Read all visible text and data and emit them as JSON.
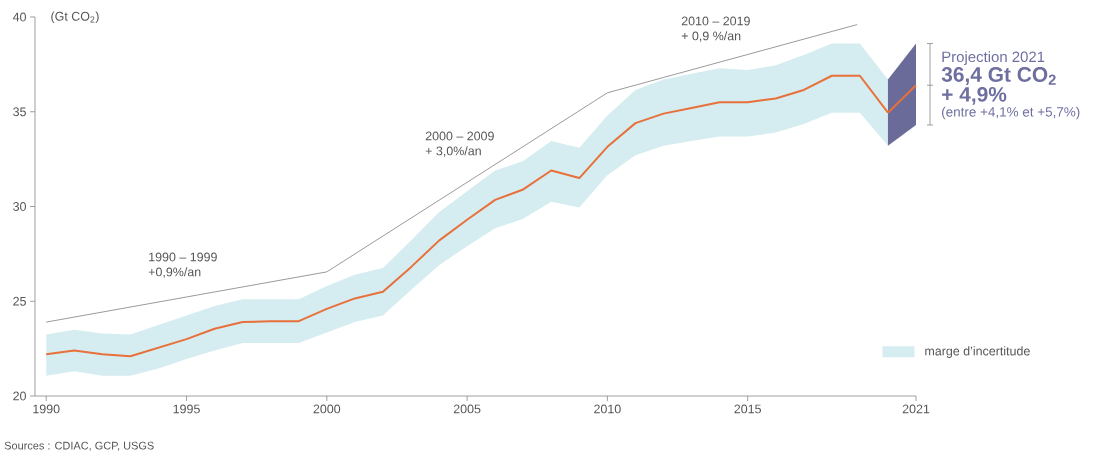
{
  "chart_data": {
    "type": "line",
    "ylabel": "(Gt CO$_{2}$)",
    "xlim": [
      1989.6,
      2021
    ],
    "xticks": [
      1990,
      1995,
      2000,
      2005,
      2010,
      2015,
      2021
    ],
    "ylim": [
      20,
      40
    ],
    "yticks": [
      20,
      25,
      30,
      35,
      40
    ],
    "legend": "bottom right",
    "series": [
      {
        "name": "marge d’incertitude",
        "color": "#e8703a",
        "x": [
          1990,
          1991,
          1992,
          1993,
          1994,
          1995,
          1996,
          1997,
          1998,
          1999,
          2000,
          2001,
          2002,
          2003,
          2004,
          2005,
          2006,
          2007,
          2008,
          2009,
          2010,
          2011,
          2012,
          2013,
          2014,
          2015,
          2016,
          2017,
          2018,
          2019,
          2020
        ],
        "values": [
          22.2,
          22.4,
          22.2,
          22.1,
          22.55,
          23.0,
          23.55,
          23.9,
          23.95,
          23.95,
          24.6,
          25.15,
          25.5,
          26.8,
          28.2,
          29.3,
          30.35,
          30.9,
          31.9,
          31.5,
          33.15,
          34.4,
          34.9,
          35.2,
          35.5,
          35.5,
          35.7,
          36.15,
          36.9,
          36.9,
          34.95
        ],
        "lower": [
          21.07,
          21.3,
          21.07,
          21.07,
          21.45,
          21.95,
          22.4,
          22.8,
          22.8,
          22.8,
          23.35,
          23.9,
          24.25,
          25.6,
          26.9,
          27.9,
          28.85,
          29.35,
          30.25,
          29.95,
          31.65,
          32.7,
          33.2,
          33.45,
          33.7,
          33.7,
          33.9,
          34.35,
          34.95,
          34.95,
          33.2
        ],
        "upper": [
          23.25,
          23.5,
          23.3,
          23.25,
          23.75,
          24.25,
          24.75,
          25.1,
          25.1,
          25.1,
          25.8,
          26.4,
          26.75,
          28.2,
          29.7,
          30.8,
          31.9,
          32.4,
          33.45,
          33.1,
          34.8,
          36.15,
          36.7,
          37.0,
          37.3,
          37.2,
          37.45,
          38.0,
          38.6,
          38.6,
          36.7
        ]
      },
      {
        "color": "#e8703a",
        "x": [
          2020,
          2021
        ],
        "values": [
          34.95,
          36.4
        ],
        "lower": [
          33.2,
          34.3
        ],
        "upper": [
          36.7,
          38.6
        ]
      },
      {
        "color": "#555555",
        "x": [
          1990,
          2000,
          2010,
          2018.9
        ],
        "values": [
          23.9,
          26.55,
          36.0,
          39.6
        ]
      }
    ],
    "annotations": [
      "1990 – 1999",
      "+0,9%/an",
      "2000 – 2009",
      "+ 3,0%/an",
      "2010 – 2019",
      "+ 0,9 %/an",
      "Projection 2021",
      "36,4 Gt CO$_{2}$",
      "+ 4,9%",
      "(entre +4,1% et +5,7%)",
      "Sources : CDIAC, GCP, USGS"
    ]
  }
}
